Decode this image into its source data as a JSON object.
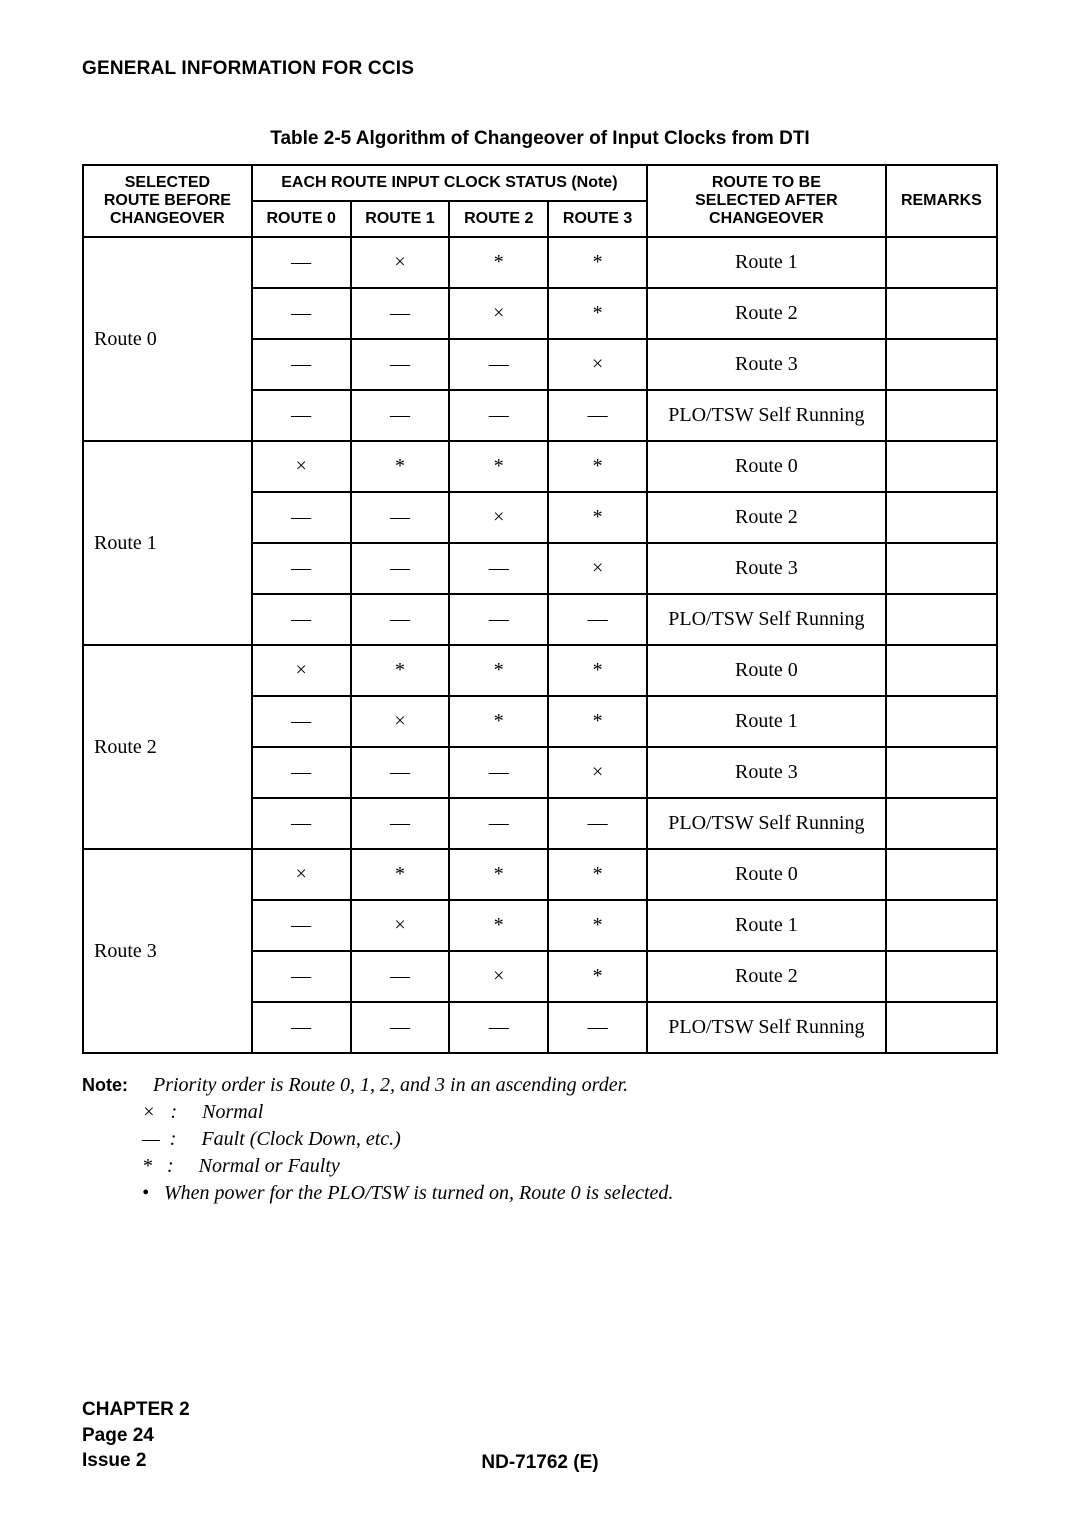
{
  "header": {
    "section_title": "GENERAL INFORMATION FOR CCIS"
  },
  "table": {
    "caption": "Table 2-5  Algorithm of Changeover of Input Clocks from DTI",
    "head": {
      "selected_top": "SELECTED",
      "selected_mid": "ROUTE BEFORE",
      "selected_bot": "CHANGEOVER",
      "status_group": "EACH ROUTE INPUT CLOCK STATUS (Note)",
      "route0": "ROUTE 0",
      "route1": "ROUTE 1",
      "route2": "ROUTE 2",
      "route3": "ROUTE 3",
      "after_top": "ROUTE TO BE",
      "after_mid": "SELECTED AFTER",
      "after_bot": "CHANGEOVER",
      "remarks": "REMARKS"
    },
    "groups": [
      {
        "label": "Route 0",
        "rows": [
          {
            "r0": "—",
            "r1": "×",
            "r2": "*",
            "r3": "*",
            "after": "Route 1",
            "remarks": ""
          },
          {
            "r0": "—",
            "r1": "—",
            "r2": "×",
            "r3": "*",
            "after": "Route 2",
            "remarks": ""
          },
          {
            "r0": "—",
            "r1": "—",
            "r2": "—",
            "r3": "×",
            "after": "Route 3",
            "remarks": ""
          },
          {
            "r0": "—",
            "r1": "—",
            "r2": "—",
            "r3": "—",
            "after": "PLO/TSW Self Running",
            "remarks": ""
          }
        ]
      },
      {
        "label": "Route 1",
        "rows": [
          {
            "r0": "×",
            "r1": "*",
            "r2": "*",
            "r3": "*",
            "after": "Route 0",
            "remarks": ""
          },
          {
            "r0": "—",
            "r1": "—",
            "r2": "×",
            "r3": "*",
            "after": "Route 2",
            "remarks": ""
          },
          {
            "r0": "—",
            "r1": "—",
            "r2": "—",
            "r3": "×",
            "after": "Route 3",
            "remarks": ""
          },
          {
            "r0": "—",
            "r1": "—",
            "r2": "—",
            "r3": "—",
            "after": "PLO/TSW Self Running",
            "remarks": ""
          }
        ]
      },
      {
        "label": "Route 2",
        "rows": [
          {
            "r0": "×",
            "r1": "*",
            "r2": "*",
            "r3": "*",
            "after": "Route 0",
            "remarks": ""
          },
          {
            "r0": "—",
            "r1": "×",
            "r2": "*",
            "r3": "*",
            "after": "Route 1",
            "remarks": ""
          },
          {
            "r0": "—",
            "r1": "—",
            "r2": "—",
            "r3": "×",
            "after": "Route 3",
            "remarks": ""
          },
          {
            "r0": "—",
            "r1": "—",
            "r2": "—",
            "r3": "—",
            "after": "PLO/TSW Self Running",
            "remarks": ""
          }
        ]
      },
      {
        "label": "Route 3",
        "rows": [
          {
            "r0": "×",
            "r1": "*",
            "r2": "*",
            "r3": "*",
            "after": "Route 0",
            "remarks": ""
          },
          {
            "r0": "—",
            "r1": "×",
            "r2": "*",
            "r3": "*",
            "after": "Route 1",
            "remarks": ""
          },
          {
            "r0": "—",
            "r1": "—",
            "r2": "×",
            "r3": "*",
            "after": "Route 2",
            "remarks": ""
          },
          {
            "r0": "—",
            "r1": "—",
            "r2": "—",
            "r3": "—",
            "after": "PLO/TSW Self Running",
            "remarks": ""
          }
        ]
      }
    ]
  },
  "note": {
    "label": "Note:",
    "lead": "Priority order is Route 0, 1, 2, and 3 in an ascending order.",
    "items": [
      "×   :     Normal",
      "—  :     Fault (Clock Down, etc.)",
      "*   :     Normal or Faulty",
      "•   When power for the PLO/TSW is turned on, Route 0 is selected."
    ]
  },
  "footer": {
    "chapter": "CHAPTER 2",
    "page": "Page 24",
    "issue": "Issue 2",
    "doc": "ND-71762 (E)"
  }
}
